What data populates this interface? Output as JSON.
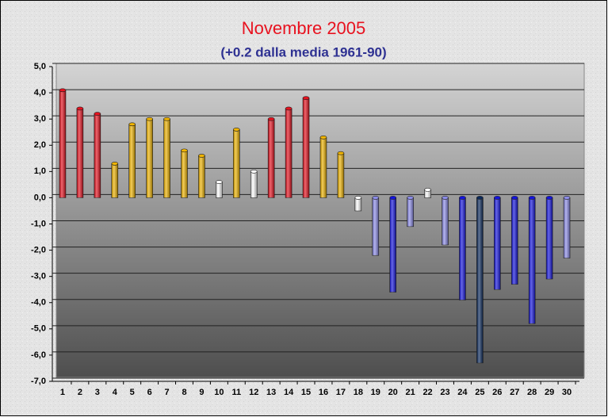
{
  "chart_data": {
    "type": "bar",
    "title": "Novembre 2005",
    "subtitle": "(+0.2 dalla media 1961-90)",
    "title_color": "#e8121f",
    "subtitle_color": "#2e3192",
    "categories": [
      "1",
      "2",
      "3",
      "4",
      "5",
      "6",
      "7",
      "8",
      "9",
      "10",
      "11",
      "12",
      "13",
      "14",
      "15",
      "16",
      "17",
      "18",
      "19",
      "20",
      "21",
      "22",
      "23",
      "24",
      "25",
      "26",
      "27",
      "28",
      "29",
      "30"
    ],
    "values": [
      4.1,
      3.4,
      3.2,
      1.3,
      2.8,
      3.0,
      3.0,
      1.8,
      1.6,
      0.6,
      2.6,
      1.0,
      3.0,
      3.4,
      3.8,
      2.3,
      1.7,
      -0.5,
      -2.2,
      -3.6,
      -1.1,
      0.3,
      -1.8,
      -3.9,
      -6.3,
      -3.5,
      -3.3,
      -4.8,
      -3.1,
      -2.3
    ],
    "colors": [
      "#e8121f",
      "#e8121f",
      "#e8121f",
      "#f0b400",
      "#f0b400",
      "#f0b400",
      "#f0b400",
      "#f0b400",
      "#f0b400",
      "#ffffff",
      "#f0b400",
      "#ffffff",
      "#e8121f",
      "#e8121f",
      "#e8121f",
      "#f0b400",
      "#f0b400",
      "#ffffff",
      "#8c8ce8",
      "#1414e0",
      "#8c8ce8",
      "#ffffff",
      "#8c8ce8",
      "#1414e0",
      "#0c2a5c",
      "#1414e0",
      "#1414e0",
      "#1414e0",
      "#1414e0",
      "#8c8ce8"
    ],
    "ylim": [
      -7,
      5
    ],
    "yticks": [
      {
        "value": 5,
        "label": "5,0"
      },
      {
        "value": 4,
        "label": "4,0"
      },
      {
        "value": 3,
        "label": "3,0"
      },
      {
        "value": 2,
        "label": "2,0"
      },
      {
        "value": 1,
        "label": "1,0"
      },
      {
        "value": 0,
        "label": "0,0"
      },
      {
        "value": -1,
        "label": "-1,0"
      },
      {
        "value": -2,
        "label": "-2,0"
      },
      {
        "value": -3,
        "label": "-3,0"
      },
      {
        "value": -4,
        "label": "-4,0"
      },
      {
        "value": -5,
        "label": "-5,0"
      },
      {
        "value": -6,
        "label": "-6,0"
      },
      {
        "value": -7,
        "label": "-7,0"
      }
    ],
    "grid": true
  }
}
